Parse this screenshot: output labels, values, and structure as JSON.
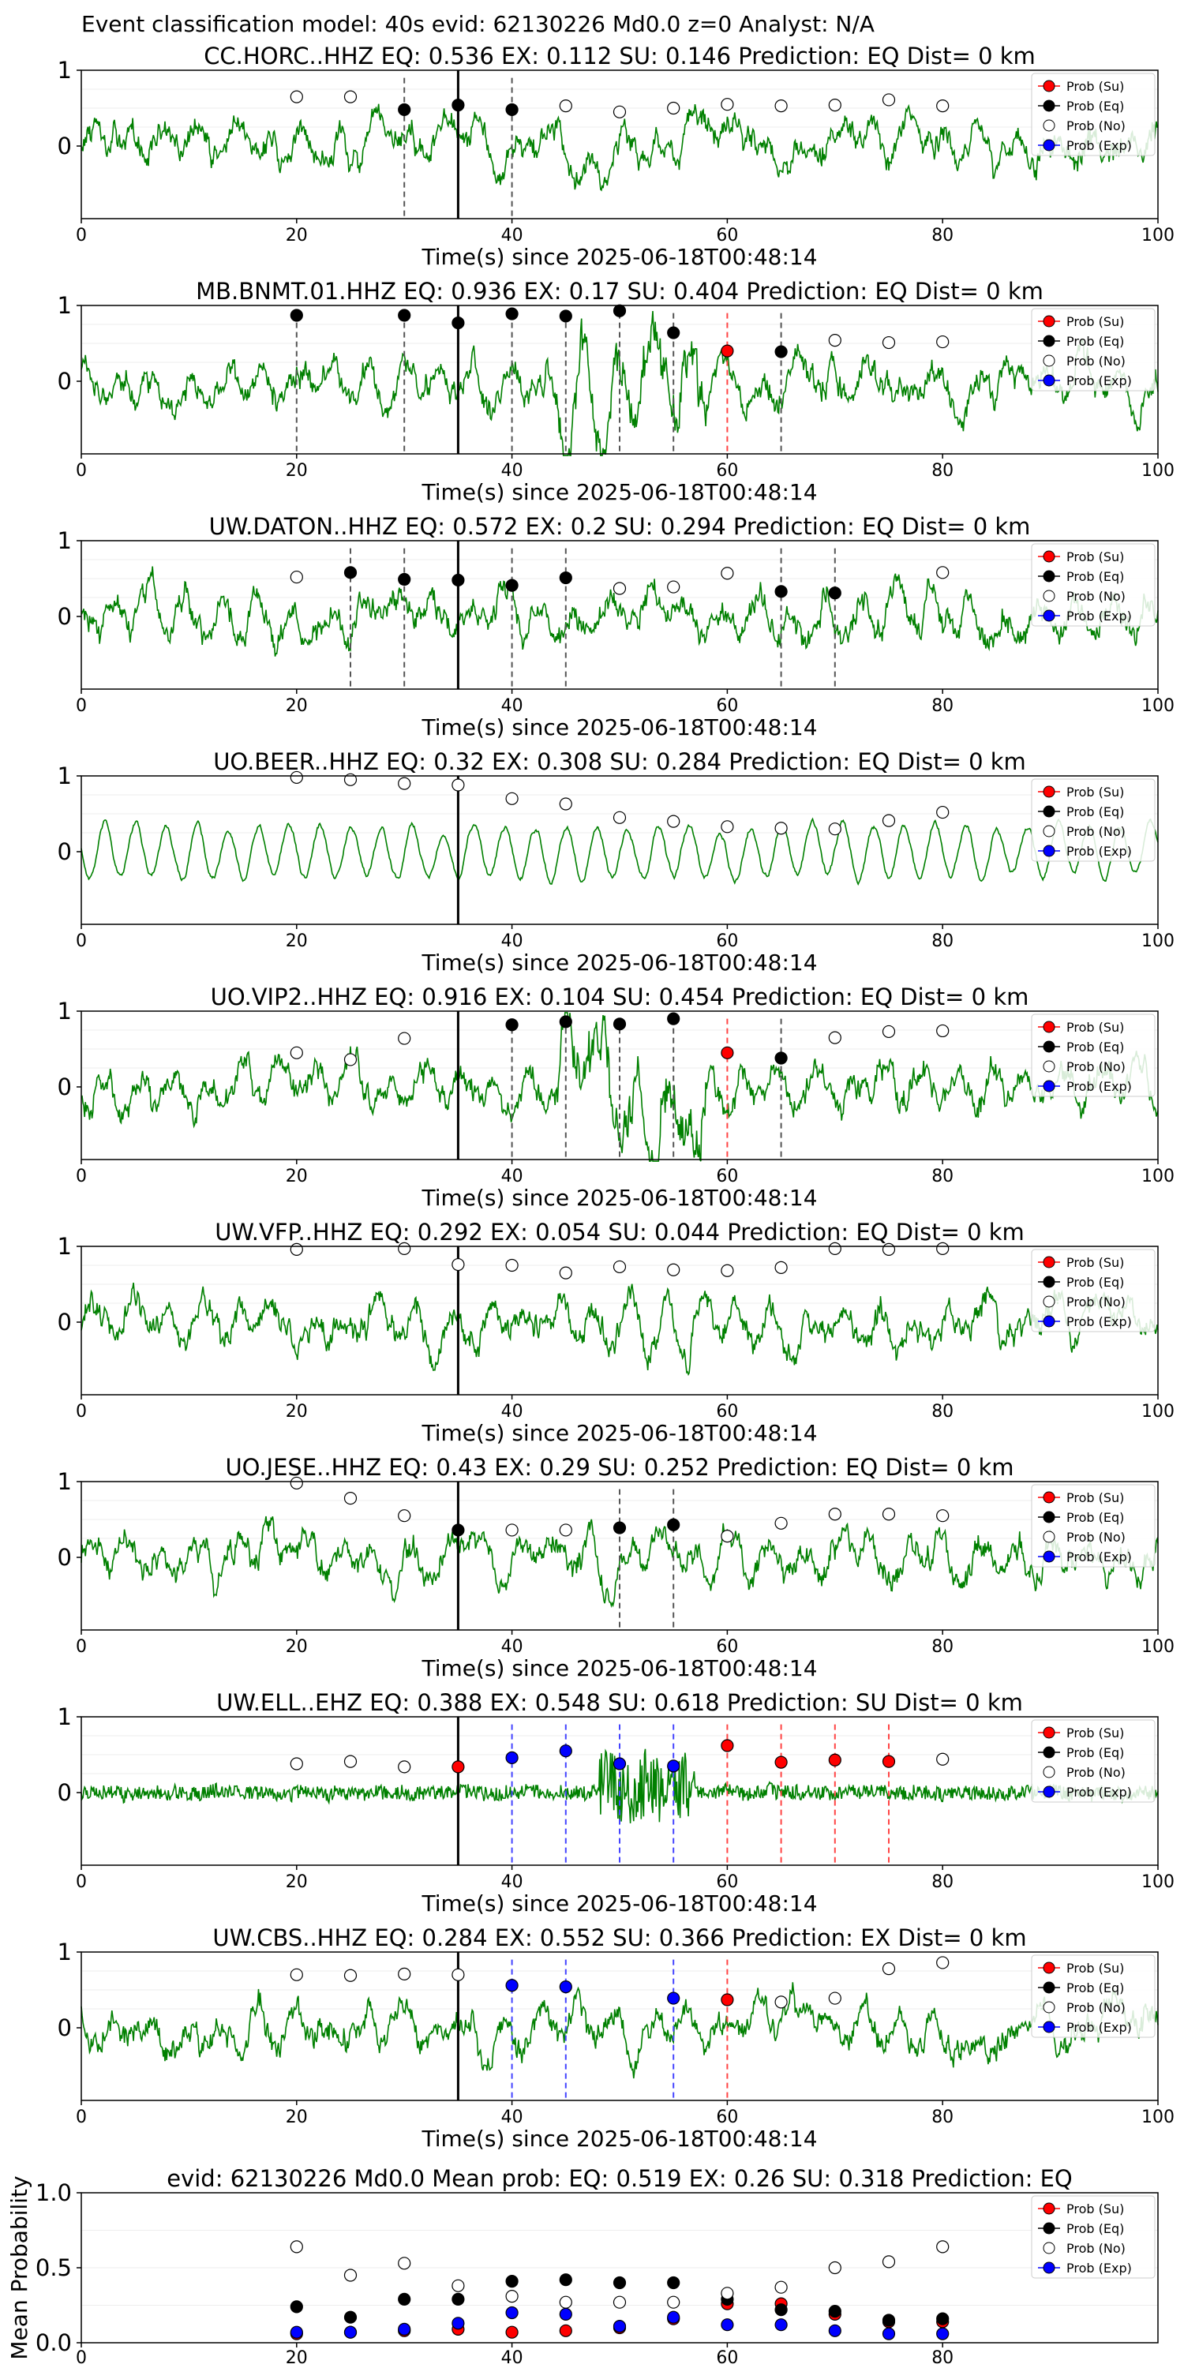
{
  "suptitle": "Event classification model: 40s evid: 62130226 Md0.0 z=0 Analyst: N/A",
  "legend_labels": [
    "Prob (Su)",
    "Prob (Eq)",
    "Prob (No)",
    "Prob (Exp)"
  ],
  "colors": {
    "waveform": "#008000",
    "su": "#ff0000",
    "eq": "#000000",
    "no": "#ffffff",
    "exp": "#0000ff",
    "p_line": "#000000",
    "dash_eq": "#555555",
    "dash_su": "#ff4444",
    "dash_exp": "#4444ff"
  },
  "chart_data": [
    {
      "type": "line",
      "title": "CC.HORC..HHZ   EQ: 0.536  EX: 0.112  SU: 0.146   Prediction: EQ    Dist= 0 km",
      "xlabel": "Time(s) since 2025-06-18T00:48:14",
      "xlim": [
        0,
        100
      ],
      "xticks": [
        "0",
        "20",
        "40",
        "60",
        "80",
        "100"
      ],
      "yticks": [
        "1",
        "0"
      ],
      "p_arrival": 35,
      "style": "noisy",
      "dashed_lines": [
        {
          "x": 30,
          "class": "eq"
        },
        {
          "x": 40,
          "class": "eq"
        }
      ],
      "points": [
        {
          "x": 20,
          "y": 0.65,
          "class": "no"
        },
        {
          "x": 25,
          "y": 0.65,
          "class": "no"
        },
        {
          "x": 30,
          "y": 0.48,
          "class": "eq"
        },
        {
          "x": 35,
          "y": 0.54,
          "class": "eq"
        },
        {
          "x": 40,
          "y": 0.48,
          "class": "eq"
        },
        {
          "x": 45,
          "y": 0.53,
          "class": "no"
        },
        {
          "x": 50,
          "y": 0.45,
          "class": "no"
        },
        {
          "x": 55,
          "y": 0.5,
          "class": "no"
        },
        {
          "x": 60,
          "y": 0.55,
          "class": "no"
        },
        {
          "x": 65,
          "y": 0.53,
          "class": "no"
        },
        {
          "x": 70,
          "y": 0.54,
          "class": "no"
        },
        {
          "x": 75,
          "y": 0.61,
          "class": "no"
        },
        {
          "x": 80,
          "y": 0.53,
          "class": "no"
        }
      ]
    },
    {
      "type": "line",
      "title": "MB.BNMT.01.HHZ   EQ: 0.936  EX: 0.17  SU: 0.404   Prediction: EQ    Dist= 0 km",
      "xlabel": "Time(s) since 2025-06-18T00:48:14",
      "xlim": [
        0,
        100
      ],
      "xticks": [
        "0",
        "20",
        "40",
        "60",
        "80",
        "100"
      ],
      "yticks": [
        "1",
        "0"
      ],
      "p_arrival": 35,
      "style": "burst",
      "dashed_lines": [
        {
          "x": 20,
          "class": "eq"
        },
        {
          "x": 30,
          "class": "eq"
        },
        {
          "x": 40,
          "class": "eq"
        },
        {
          "x": 45,
          "class": "eq"
        },
        {
          "x": 50,
          "class": "eq"
        },
        {
          "x": 55,
          "class": "eq"
        },
        {
          "x": 60,
          "class": "su"
        },
        {
          "x": 65,
          "class": "eq"
        }
      ],
      "points": [
        {
          "x": 20,
          "y": 0.87,
          "class": "eq"
        },
        {
          "x": 30,
          "y": 0.87,
          "class": "eq"
        },
        {
          "x": 35,
          "y": 0.77,
          "class": "eq"
        },
        {
          "x": 40,
          "y": 0.89,
          "class": "eq"
        },
        {
          "x": 45,
          "y": 0.86,
          "class": "eq"
        },
        {
          "x": 50,
          "y": 0.93,
          "class": "eq"
        },
        {
          "x": 55,
          "y": 0.64,
          "class": "eq"
        },
        {
          "x": 60,
          "y": 0.4,
          "class": "su"
        },
        {
          "x": 65,
          "y": 0.39,
          "class": "eq"
        },
        {
          "x": 70,
          "y": 0.54,
          "class": "no"
        },
        {
          "x": 75,
          "y": 0.51,
          "class": "no"
        },
        {
          "x": 80,
          "y": 0.52,
          "class": "no"
        }
      ]
    },
    {
      "type": "line",
      "title": "UW.DATON..HHZ   EQ: 0.572  EX: 0.2  SU: 0.294   Prediction: EQ    Dist= 0 km",
      "xlabel": "Time(s) since 2025-06-18T00:48:14",
      "xlim": [
        0,
        100
      ],
      "xticks": [
        "0",
        "20",
        "40",
        "60",
        "80",
        "100"
      ],
      "yticks": [
        "1",
        "0"
      ],
      "p_arrival": 35,
      "style": "noisy",
      "dashed_lines": [
        {
          "x": 25,
          "class": "eq"
        },
        {
          "x": 30,
          "class": "eq"
        },
        {
          "x": 40,
          "class": "eq"
        },
        {
          "x": 45,
          "class": "eq"
        },
        {
          "x": 65,
          "class": "eq"
        },
        {
          "x": 70,
          "class": "eq"
        }
      ],
      "points": [
        {
          "x": 20,
          "y": 0.52,
          "class": "no"
        },
        {
          "x": 25,
          "y": 0.58,
          "class": "eq"
        },
        {
          "x": 30,
          "y": 0.49,
          "class": "eq"
        },
        {
          "x": 35,
          "y": 0.48,
          "class": "eq"
        },
        {
          "x": 40,
          "y": 0.41,
          "class": "eq"
        },
        {
          "x": 45,
          "y": 0.51,
          "class": "eq"
        },
        {
          "x": 50,
          "y": 0.37,
          "class": "no"
        },
        {
          "x": 55,
          "y": 0.39,
          "class": "no"
        },
        {
          "x": 60,
          "y": 0.57,
          "class": "no"
        },
        {
          "x": 65,
          "y": 0.33,
          "class": "eq"
        },
        {
          "x": 70,
          "y": 0.31,
          "class": "eq"
        },
        {
          "x": 80,
          "y": 0.58,
          "class": "no"
        }
      ]
    },
    {
      "type": "line",
      "title": "UO.BEER..HHZ   EQ: 0.32  EX: 0.308  SU: 0.284   Prediction: EQ    Dist= 0 km",
      "xlabel": "Time(s) since 2025-06-18T00:48:14",
      "xlim": [
        0,
        100
      ],
      "xticks": [
        "0",
        "20",
        "40",
        "60",
        "80",
        "100"
      ],
      "yticks": [
        "1",
        "0"
      ],
      "p_arrival": 35,
      "style": "wave",
      "dashed_lines": [],
      "points": [
        {
          "x": 20,
          "y": 0.98,
          "class": "no"
        },
        {
          "x": 25,
          "y": 0.95,
          "class": "no"
        },
        {
          "x": 30,
          "y": 0.9,
          "class": "no"
        },
        {
          "x": 35,
          "y": 0.88,
          "class": "no"
        },
        {
          "x": 40,
          "y": 0.7,
          "class": "no"
        },
        {
          "x": 45,
          "y": 0.63,
          "class": "no"
        },
        {
          "x": 50,
          "y": 0.45,
          "class": "no"
        },
        {
          "x": 55,
          "y": 0.4,
          "class": "no"
        },
        {
          "x": 60,
          "y": 0.33,
          "class": "no"
        },
        {
          "x": 65,
          "y": 0.31,
          "class": "no"
        },
        {
          "x": 70,
          "y": 0.3,
          "class": "no"
        },
        {
          "x": 75,
          "y": 0.41,
          "class": "no"
        },
        {
          "x": 80,
          "y": 0.52,
          "class": "no"
        }
      ]
    },
    {
      "type": "line",
      "title": "UO.VIP2..HHZ   EQ: 0.916  EX: 0.104  SU: 0.454   Prediction: EQ    Dist= 0 km",
      "xlabel": "Time(s) since 2025-06-18T00:48:14",
      "xlim": [
        0,
        100
      ],
      "xticks": [
        "0",
        "20",
        "40",
        "60",
        "80",
        "100"
      ],
      "yticks": [
        "1",
        "0"
      ],
      "p_arrival": 35,
      "style": "burst",
      "dashed_lines": [
        {
          "x": 40,
          "class": "eq"
        },
        {
          "x": 45,
          "class": "eq"
        },
        {
          "x": 50,
          "class": "eq"
        },
        {
          "x": 55,
          "class": "eq"
        },
        {
          "x": 60,
          "class": "su"
        },
        {
          "x": 65,
          "class": "eq"
        }
      ],
      "points": [
        {
          "x": 20,
          "y": 0.45,
          "class": "no"
        },
        {
          "x": 25,
          "y": 0.36,
          "class": "no"
        },
        {
          "x": 30,
          "y": 0.64,
          "class": "no"
        },
        {
          "x": 40,
          "y": 0.82,
          "class": "eq"
        },
        {
          "x": 45,
          "y": 0.86,
          "class": "eq"
        },
        {
          "x": 50,
          "y": 0.83,
          "class": "eq"
        },
        {
          "x": 55,
          "y": 0.9,
          "class": "eq"
        },
        {
          "x": 60,
          "y": 0.45,
          "class": "su"
        },
        {
          "x": 65,
          "y": 0.38,
          "class": "eq"
        },
        {
          "x": 70,
          "y": 0.65,
          "class": "no"
        },
        {
          "x": 75,
          "y": 0.73,
          "class": "no"
        },
        {
          "x": 80,
          "y": 0.74,
          "class": "no"
        }
      ]
    },
    {
      "type": "line",
      "title": "UW.VFP..HHZ   EQ: 0.292  EX: 0.054  SU: 0.044   Prediction: EQ    Dist= 0 km",
      "xlabel": "Time(s) since 2025-06-18T00:48:14",
      "xlim": [
        0,
        100
      ],
      "xticks": [
        "0",
        "20",
        "40",
        "60",
        "80",
        "100"
      ],
      "yticks": [
        "1",
        "0"
      ],
      "p_arrival": 35,
      "style": "noisy",
      "dashed_lines": [],
      "points": [
        {
          "x": 20,
          "y": 0.96,
          "class": "no"
        },
        {
          "x": 30,
          "y": 0.97,
          "class": "no"
        },
        {
          "x": 35,
          "y": 0.76,
          "class": "no"
        },
        {
          "x": 40,
          "y": 0.75,
          "class": "no"
        },
        {
          "x": 45,
          "y": 0.65,
          "class": "no"
        },
        {
          "x": 50,
          "y": 0.73,
          "class": "no"
        },
        {
          "x": 55,
          "y": 0.69,
          "class": "no"
        },
        {
          "x": 60,
          "y": 0.68,
          "class": "no"
        },
        {
          "x": 65,
          "y": 0.72,
          "class": "no"
        },
        {
          "x": 70,
          "y": 0.97,
          "class": "no"
        },
        {
          "x": 75,
          "y": 0.96,
          "class": "no"
        },
        {
          "x": 80,
          "y": 0.97,
          "class": "no"
        }
      ]
    },
    {
      "type": "line",
      "title": "UO.JESE..HHZ   EQ: 0.43  EX: 0.29  SU: 0.252   Prediction: EQ    Dist= 0 km",
      "xlabel": "Time(s) since 2025-06-18T00:48:14",
      "xlim": [
        0,
        100
      ],
      "xticks": [
        "0",
        "20",
        "40",
        "60",
        "80",
        "100"
      ],
      "yticks": [
        "1",
        "0"
      ],
      "p_arrival": 35,
      "style": "noisy",
      "dashed_lines": [
        {
          "x": 50,
          "class": "eq"
        },
        {
          "x": 55,
          "class": "eq"
        }
      ],
      "points": [
        {
          "x": 20,
          "y": 0.98,
          "class": "no"
        },
        {
          "x": 25,
          "y": 0.78,
          "class": "no"
        },
        {
          "x": 30,
          "y": 0.55,
          "class": "no"
        },
        {
          "x": 35,
          "y": 0.36,
          "class": "eq"
        },
        {
          "x": 40,
          "y": 0.36,
          "class": "no"
        },
        {
          "x": 45,
          "y": 0.36,
          "class": "no"
        },
        {
          "x": 50,
          "y": 0.39,
          "class": "eq"
        },
        {
          "x": 55,
          "y": 0.43,
          "class": "eq"
        },
        {
          "x": 60,
          "y": 0.28,
          "class": "no"
        },
        {
          "x": 65,
          "y": 0.45,
          "class": "no"
        },
        {
          "x": 70,
          "y": 0.57,
          "class": "no"
        },
        {
          "x": 75,
          "y": 0.57,
          "class": "no"
        },
        {
          "x": 80,
          "y": 0.55,
          "class": "no"
        }
      ]
    },
    {
      "type": "line",
      "title": "UW.ELL..EHZ   EQ: 0.388  EX: 0.548  SU: 0.618   Prediction: SU    Dist= 0 km",
      "xlabel": "Time(s) since 2025-06-18T00:48:14",
      "xlim": [
        0,
        100
      ],
      "xticks": [
        "0",
        "20",
        "40",
        "60",
        "80",
        "100"
      ],
      "yticks": [
        "1",
        "0"
      ],
      "p_arrival": 35,
      "style": "small",
      "dashed_lines": [
        {
          "x": 40,
          "class": "exp"
        },
        {
          "x": 45,
          "class": "exp"
        },
        {
          "x": 50,
          "class": "exp"
        },
        {
          "x": 55,
          "class": "exp"
        },
        {
          "x": 60,
          "class": "su"
        },
        {
          "x": 65,
          "class": "su"
        },
        {
          "x": 70,
          "class": "su"
        },
        {
          "x": 75,
          "class": "su"
        }
      ],
      "points": [
        {
          "x": 20,
          "y": 0.38,
          "class": "no"
        },
        {
          "x": 25,
          "y": 0.41,
          "class": "no"
        },
        {
          "x": 30,
          "y": 0.34,
          "class": "no"
        },
        {
          "x": 35,
          "y": 0.34,
          "class": "su"
        },
        {
          "x": 40,
          "y": 0.46,
          "class": "exp"
        },
        {
          "x": 45,
          "y": 0.55,
          "class": "exp"
        },
        {
          "x": 50,
          "y": 0.38,
          "class": "exp"
        },
        {
          "x": 55,
          "y": 0.35,
          "class": "exp"
        },
        {
          "x": 60,
          "y": 0.62,
          "class": "su"
        },
        {
          "x": 65,
          "y": 0.4,
          "class": "su"
        },
        {
          "x": 70,
          "y": 0.43,
          "class": "su"
        },
        {
          "x": 75,
          "y": 0.41,
          "class": "su"
        },
        {
          "x": 80,
          "y": 0.44,
          "class": "no"
        }
      ]
    },
    {
      "type": "line",
      "title": "UW.CBS..HHZ   EQ: 0.284  EX: 0.552  SU: 0.366   Prediction: EX    Dist= 0 km",
      "xlabel": "Time(s) since 2025-06-18T00:48:14",
      "xlim": [
        0,
        100
      ],
      "xticks": [
        "0",
        "20",
        "40",
        "60",
        "80",
        "100"
      ],
      "yticks": [
        "1",
        "0"
      ],
      "p_arrival": 35,
      "style": "noisy",
      "dashed_lines": [
        {
          "x": 40,
          "class": "exp"
        },
        {
          "x": 45,
          "class": "exp"
        },
        {
          "x": 55,
          "class": "exp"
        },
        {
          "x": 60,
          "class": "su"
        }
      ],
      "points": [
        {
          "x": 20,
          "y": 0.7,
          "class": "no"
        },
        {
          "x": 25,
          "y": 0.69,
          "class": "no"
        },
        {
          "x": 30,
          "y": 0.71,
          "class": "no"
        },
        {
          "x": 35,
          "y": 0.7,
          "class": "no"
        },
        {
          "x": 40,
          "y": 0.56,
          "class": "exp"
        },
        {
          "x": 45,
          "y": 0.54,
          "class": "exp"
        },
        {
          "x": 55,
          "y": 0.39,
          "class": "exp"
        },
        {
          "x": 60,
          "y": 0.37,
          "class": "su"
        },
        {
          "x": 65,
          "y": 0.34,
          "class": "no"
        },
        {
          "x": 70,
          "y": 0.39,
          "class": "no"
        },
        {
          "x": 75,
          "y": 0.78,
          "class": "no"
        },
        {
          "x": 80,
          "y": 0.86,
          "class": "no"
        }
      ]
    },
    {
      "type": "scatter",
      "title": "evid: 62130226  Md0.0   Mean prob:   EQ: 0.519  EX: 0.26  SU: 0.318   Prediction: EQ",
      "ylabel": "Mean Probability",
      "xlim": [
        0,
        100
      ],
      "ylim": [
        0,
        1
      ],
      "xticks": [
        "0",
        "20",
        "40",
        "60",
        "80"
      ],
      "yticks": [
        "1.0",
        "0.5",
        "0.0"
      ],
      "x": [
        20,
        25,
        30,
        35,
        40,
        45,
        50,
        55,
        60,
        65,
        70,
        75,
        80
      ],
      "series": [
        {
          "name": "Prob (Su)",
          "class": "su",
          "values": [
            0.06,
            0.07,
            0.08,
            0.09,
            0.07,
            0.08,
            0.1,
            0.16,
            0.26,
            0.26,
            0.19,
            0.14,
            0.14
          ]
        },
        {
          "name": "Prob (Eq)",
          "class": "eq",
          "values": [
            0.24,
            0.17,
            0.29,
            0.29,
            0.41,
            0.42,
            0.4,
            0.4,
            0.29,
            0.22,
            0.21,
            0.15,
            0.16
          ]
        },
        {
          "name": "Prob (No)",
          "class": "no",
          "values": [
            0.64,
            0.45,
            0.53,
            0.38,
            0.31,
            0.27,
            0.27,
            0.27,
            0.33,
            0.37,
            0.5,
            0.54,
            0.64
          ]
        },
        {
          "name": "Prob (Exp)",
          "class": "exp",
          "values": [
            0.07,
            0.07,
            0.09,
            0.13,
            0.2,
            0.19,
            0.11,
            0.17,
            0.12,
            0.12,
            0.08,
            0.06,
            0.06
          ]
        }
      ]
    }
  ]
}
